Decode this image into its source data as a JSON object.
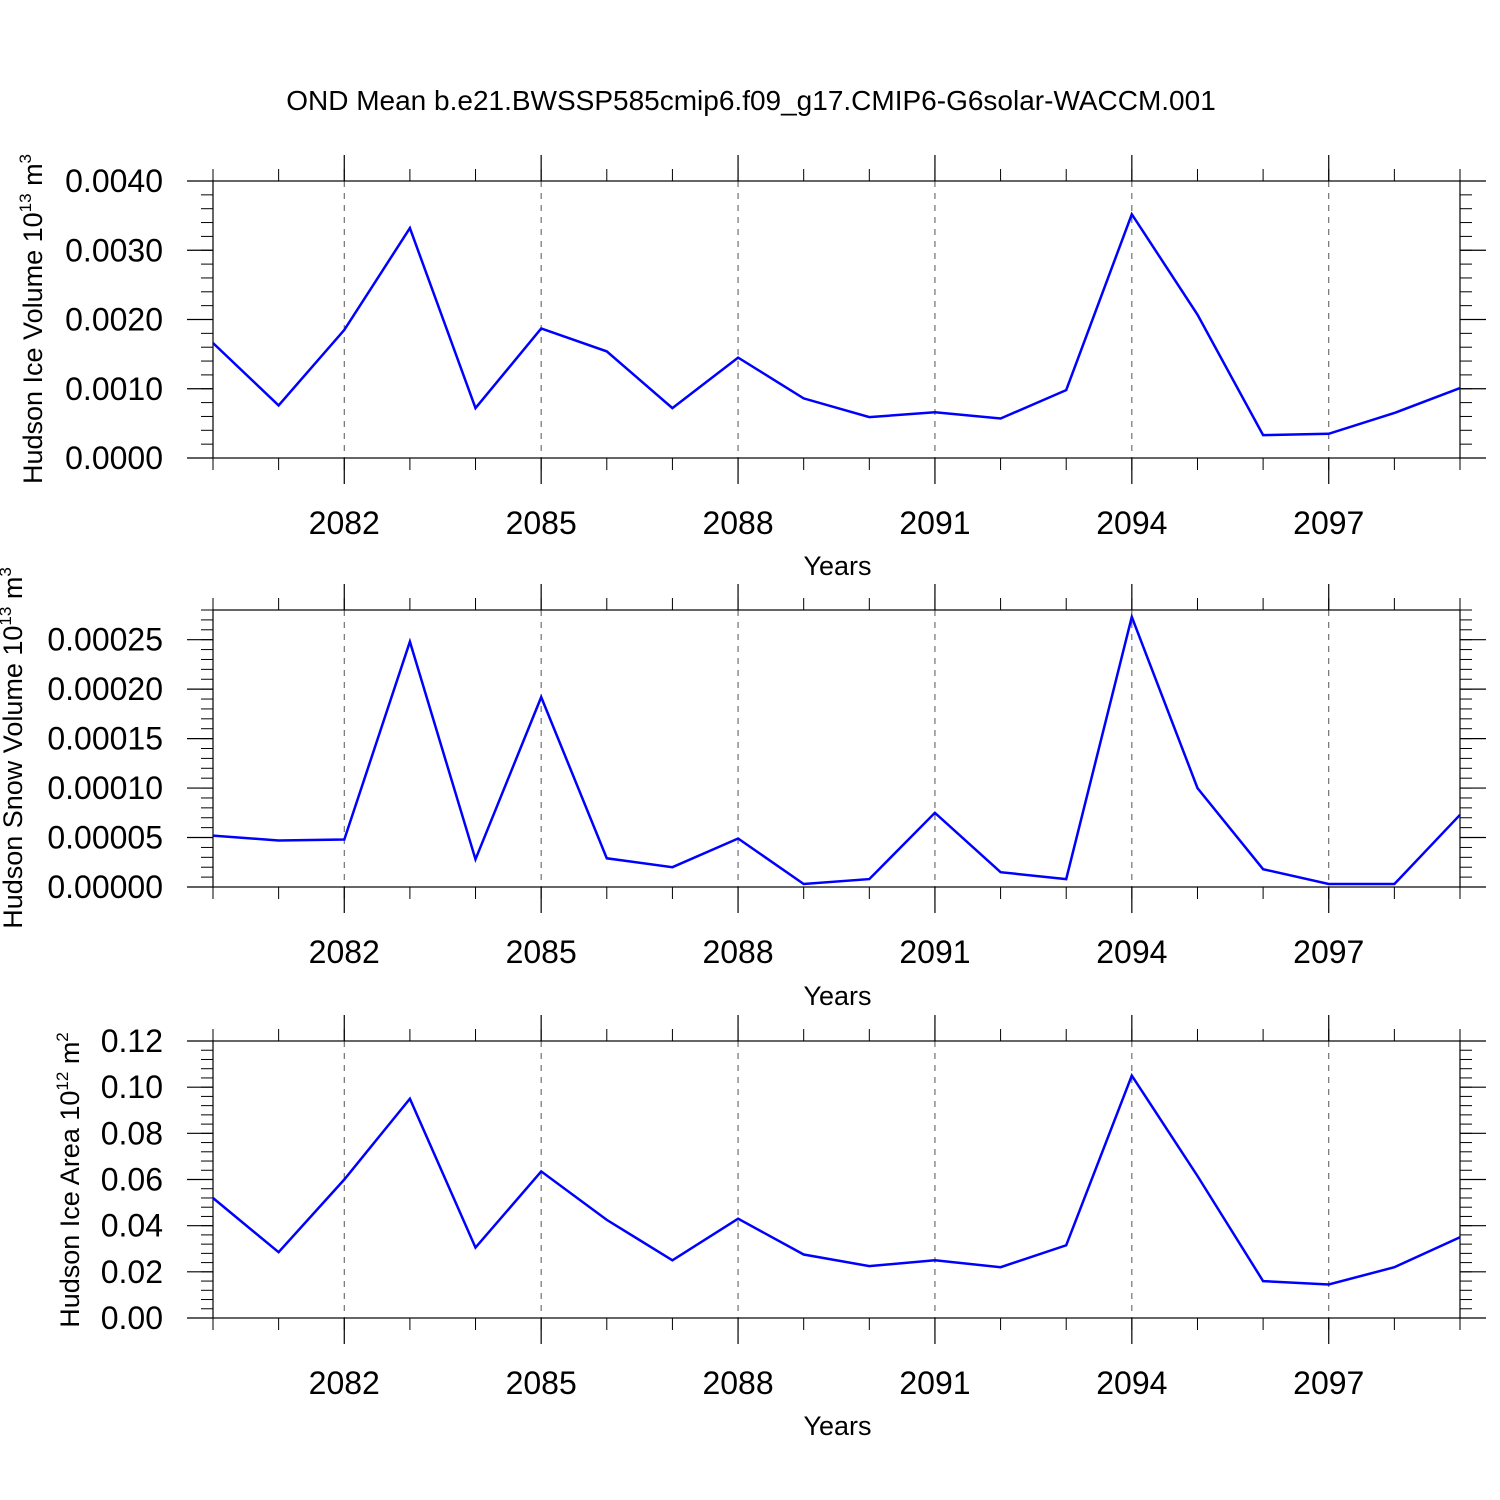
{
  "title": "OND Mean b.e21.BWSSP585cmip6.f09_g17.CMIP6-G6solar-WACCM.001",
  "chart_data": [
    {
      "type": "line",
      "title": "",
      "xlabel": "Years",
      "ylabel": {
        "text": "Hudson Ice Volume 10",
        "exp": "13",
        "unit": " m",
        "unit_exp": "3"
      },
      "x": [
        2080,
        2081,
        2082,
        2083,
        2084,
        2085,
        2086,
        2087,
        2088,
        2089,
        2090,
        2091,
        2092,
        2093,
        2094,
        2095,
        2096,
        2097,
        2098,
        2099
      ],
      "xlim": [
        2080,
        2099
      ],
      "xticks": [
        2082,
        2085,
        2088,
        2091,
        2094,
        2097
      ],
      "xtick_labels": [
        "2082",
        "2085",
        "2088",
        "2091",
        "2094",
        "2097"
      ],
      "ylim": [
        0,
        0.004
      ],
      "yticks": [
        0,
        0.001,
        0.002,
        0.003,
        0.004
      ],
      "ytick_labels": [
        "0.0000",
        "0.0010",
        "0.0020",
        "0.0030",
        "0.0040"
      ],
      "grid": "vertical dashed at major x ticks",
      "series": [
        {
          "color": "#0000ff",
          "values": [
            0.00166,
            0.00076,
            0.00185,
            0.00332,
            0.00072,
            0.00187,
            0.00154,
            0.00072,
            0.00145,
            0.00086,
            0.00059,
            0.00066,
            0.00057,
            0.00098,
            0.00352,
            0.00207,
            0.00033,
            0.00035,
            0.00065,
            0.00101
          ]
        }
      ]
    },
    {
      "type": "line",
      "title": "",
      "xlabel": "Years",
      "ylabel": {
        "text": "Hudson Snow Volume 10",
        "exp": "13",
        "unit": " m",
        "unit_exp": "3"
      },
      "x": [
        2080,
        2081,
        2082,
        2083,
        2084,
        2085,
        2086,
        2087,
        2088,
        2089,
        2090,
        2091,
        2092,
        2093,
        2094,
        2095,
        2096,
        2097,
        2098,
        2099
      ],
      "xlim": [
        2080,
        2099
      ],
      "xticks": [
        2082,
        2085,
        2088,
        2091,
        2094,
        2097
      ],
      "xtick_labels": [
        "2082",
        "2085",
        "2088",
        "2091",
        "2094",
        "2097"
      ],
      "ylim": [
        0,
        0.00028
      ],
      "yticks": [
        0,
        5e-05,
        0.0001,
        0.00015,
        0.0002,
        0.00025
      ],
      "ytick_labels": [
        "0.00000",
        "0.00005",
        "0.00010",
        "0.00015",
        "0.00020",
        "0.00025"
      ],
      "grid": "vertical dashed at major x ticks",
      "series": [
        {
          "color": "#0000ff",
          "values": [
            5.2e-05,
            4.7e-05,
            4.8e-05,
            0.000248,
            2.8e-05,
            0.000192,
            2.9e-05,
            2e-05,
            4.9e-05,
            3e-06,
            8e-06,
            7.5e-05,
            1.5e-05,
            8e-06,
            0.000273,
            0.0001,
            1.8e-05,
            3e-06,
            3e-06,
            7.3e-05
          ]
        }
      ]
    },
    {
      "type": "line",
      "title": "",
      "xlabel": "Years",
      "ylabel": {
        "text": "Hudson Ice Area 10",
        "exp": "12",
        "unit": " m",
        "unit_exp": "2"
      },
      "x": [
        2080,
        2081,
        2082,
        2083,
        2084,
        2085,
        2086,
        2087,
        2088,
        2089,
        2090,
        2091,
        2092,
        2093,
        2094,
        2095,
        2096,
        2097,
        2098,
        2099
      ],
      "xlim": [
        2080,
        2099
      ],
      "xticks": [
        2082,
        2085,
        2088,
        2091,
        2094,
        2097
      ],
      "xtick_labels": [
        "2082",
        "2085",
        "2088",
        "2091",
        "2094",
        "2097"
      ],
      "ylim": [
        0,
        0.12
      ],
      "yticks": [
        0,
        0.02,
        0.04,
        0.06,
        0.08,
        0.1,
        0.12
      ],
      "ytick_labels": [
        "0.00",
        "0.02",
        "0.04",
        "0.06",
        "0.08",
        "0.10",
        "0.12"
      ],
      "grid": "vertical dashed at major x ticks",
      "series": [
        {
          "color": "#0000ff",
          "values": [
            0.052,
            0.0285,
            0.06,
            0.095,
            0.0305,
            0.0635,
            0.0425,
            0.025,
            0.043,
            0.0275,
            0.0225,
            0.025,
            0.022,
            0.0315,
            0.105,
            0.0615,
            0.016,
            0.0145,
            0.022,
            0.035
          ]
        }
      ]
    }
  ]
}
